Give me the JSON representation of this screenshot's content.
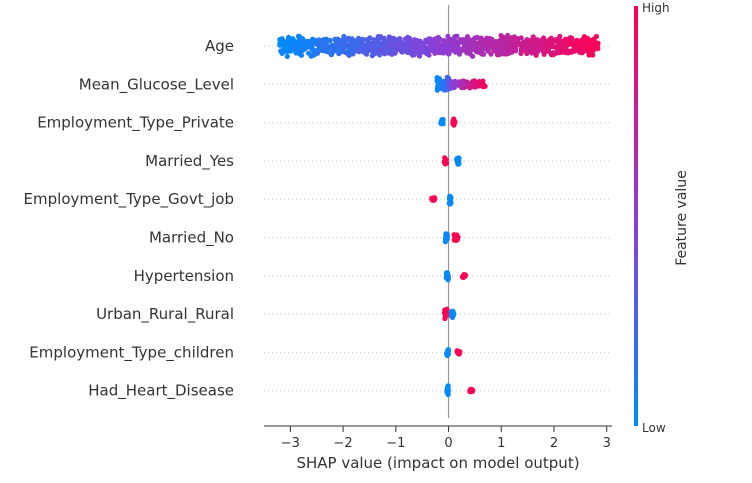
{
  "chart_data": {
    "type": "scatter",
    "subtype": "shap-beeswarm-summary",
    "title": "",
    "xlabel": "SHAP value (impact on model output)",
    "xlim": [
      -3.5,
      3.1
    ],
    "xticks": [
      -3,
      -2,
      -1,
      0,
      1,
      2,
      3
    ],
    "xtick_labels": [
      "−3",
      "−2",
      "−1",
      "0",
      "1",
      "2",
      "3"
    ],
    "zero_line": true,
    "grid": false,
    "colorbar": {
      "title": "Feature value",
      "high_label": "High",
      "low_label": "Low",
      "low_color": "#008bfb",
      "mid_color": "#8a3ed6",
      "high_color": "#ff0052",
      "placement": "right"
    },
    "features": [
      {
        "name": "Age",
        "clusters": [
          {
            "x_min": -3.2,
            "x_max": -0.2,
            "value_min": 0.0,
            "value_max": 0.5,
            "spread": 0.8
          },
          {
            "x_min": -0.2,
            "x_max": 2.85,
            "value_min": 0.5,
            "value_max": 1.0,
            "spread": 0.85
          }
        ]
      },
      {
        "name": "Mean_Glucose_Level",
        "clusters": [
          {
            "x_min": -0.22,
            "x_max": 0.05,
            "value_min": 0.0,
            "value_max": 0.35,
            "spread": 0.6
          },
          {
            "x_min": 0.05,
            "x_max": 0.7,
            "value_min": 0.5,
            "value_max": 1.0,
            "spread": 0.3
          }
        ]
      },
      {
        "name": "Employment_Type_Private",
        "clusters": [
          {
            "x_min": -0.15,
            "x_max": -0.1,
            "value_min": 0.0,
            "value_max": 0.0,
            "spread": 0.35
          },
          {
            "x_min": 0.08,
            "x_max": 0.12,
            "value_min": 1.0,
            "value_max": 1.0,
            "spread": 0.45
          }
        ]
      },
      {
        "name": "Married_Yes",
        "clusters": [
          {
            "x_min": -0.08,
            "x_max": -0.04,
            "value_min": 1.0,
            "value_max": 1.0,
            "spread": 0.45
          },
          {
            "x_min": 0.15,
            "x_max": 0.2,
            "value_min": 0.0,
            "value_max": 0.0,
            "spread": 0.35
          }
        ]
      },
      {
        "name": "Employment_Type_Govt_job",
        "clusters": [
          {
            "x_min": -0.32,
            "x_max": -0.26,
            "value_min": 1.0,
            "value_max": 1.0,
            "spread": 0.15
          },
          {
            "x_min": 0.01,
            "x_max": 0.05,
            "value_min": 0.0,
            "value_max": 0.0,
            "spread": 0.45
          }
        ]
      },
      {
        "name": "Married_No",
        "clusters": [
          {
            "x_min": -0.06,
            "x_max": -0.02,
            "value_min": 0.0,
            "value_max": 0.0,
            "spread": 0.45
          },
          {
            "x_min": 0.1,
            "x_max": 0.18,
            "value_min": 1.0,
            "value_max": 1.0,
            "spread": 0.3
          }
        ]
      },
      {
        "name": "Hypertension",
        "clusters": [
          {
            "x_min": -0.05,
            "x_max": 0.0,
            "value_min": 0.0,
            "value_max": 0.0,
            "spread": 0.45
          },
          {
            "x_min": 0.26,
            "x_max": 0.32,
            "value_min": 1.0,
            "value_max": 1.0,
            "spread": 0.15
          }
        ]
      },
      {
        "name": "Urban_Rural_Rural",
        "clusters": [
          {
            "x_min": -0.08,
            "x_max": -0.03,
            "value_min": 1.0,
            "value_max": 1.0,
            "spread": 0.45
          },
          {
            "x_min": 0.05,
            "x_max": 0.1,
            "value_min": 0.0,
            "value_max": 0.0,
            "spread": 0.45
          }
        ]
      },
      {
        "name": "Employment_Type_children",
        "clusters": [
          {
            "x_min": -0.04,
            "x_max": 0.0,
            "value_min": 0.0,
            "value_max": 0.0,
            "spread": 0.45
          },
          {
            "x_min": 0.16,
            "x_max": 0.22,
            "value_min": 1.0,
            "value_max": 1.0,
            "spread": 0.15
          }
        ]
      },
      {
        "name": "Had_Heart_Disease",
        "clusters": [
          {
            "x_min": -0.03,
            "x_max": 0.0,
            "value_min": 0.0,
            "value_max": 0.0,
            "spread": 0.45
          },
          {
            "x_min": 0.4,
            "x_max": 0.46,
            "value_min": 1.0,
            "value_max": 1.0,
            "spread": 0.12
          }
        ]
      }
    ]
  }
}
